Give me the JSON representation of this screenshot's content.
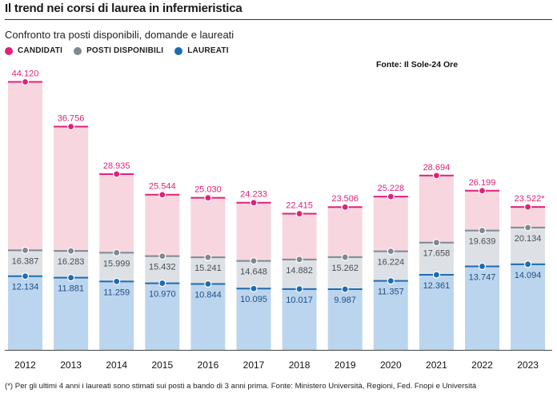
{
  "title": "Il trend nei corsi di laurea in infermieristica",
  "subtitle": "Confronto tra posti disponibili, domande e laureati",
  "source": "Fonte: Il Sole-24 Ore",
  "footnote": "(*) Per gli ultimi 4 anni i  laureati sono stimati sui posti a bando di 3 anni prima. Fonte: Ministero Università, Regioni, Fed. Fnopi e Università",
  "colors": {
    "candidati": "#e0217a",
    "posti": "#7f8890",
    "laureati": "#1e6bb0",
    "fill_candidati": "#f7d6df",
    "fill_posti": "#dde1e5",
    "fill_laureati": "#bcd5ee"
  },
  "chart_data": {
    "type": "bar",
    "title": "Il trend nei corsi di laurea in infermieristica",
    "categories": [
      "2012",
      "2013",
      "2014",
      "2015",
      "2016",
      "2017",
      "2018",
      "2019",
      "2020",
      "2021",
      "2022",
      "2023"
    ],
    "series": [
      {
        "name": "CANDIDATI",
        "values": [
          44120,
          36756,
          28935,
          25544,
          25030,
          24233,
          22415,
          23506,
          25228,
          28694,
          26199,
          23522
        ],
        "labels": [
          "44.120",
          "36.756",
          "28.935",
          "25.544",
          "25.030",
          "24.233",
          "22.415",
          "23.506",
          "25.228",
          "28.694",
          "26.199",
          "23.522*"
        ]
      },
      {
        "name": "POSTI DISPONIBILI",
        "values": [
          16387,
          16283,
          15999,
          15432,
          15241,
          14648,
          14882,
          15262,
          16224,
          17658,
          19639,
          20134
        ],
        "labels": [
          "16.387",
          "16.283",
          "15.999",
          "15.432",
          "15.241",
          "14.648",
          "14.882",
          "15.262",
          "16.224",
          "17.658",
          "19.639",
          "20.134"
        ]
      },
      {
        "name": "LAUREATI",
        "values": [
          12134,
          11881,
          11259,
          10970,
          10844,
          10095,
          10017,
          9987,
          11357,
          12361,
          13747,
          14094
        ],
        "labels": [
          "12.134",
          "11.881",
          "11.259",
          "10.970",
          "10.844",
          "10.095",
          "10.017",
          "9.987",
          "11.357",
          "12.361",
          "13.747",
          "14.094"
        ]
      }
    ],
    "ylim": [
      0,
      46000
    ],
    "legend": "top-left",
    "grid": false,
    "xlabel": "",
    "ylabel": ""
  }
}
